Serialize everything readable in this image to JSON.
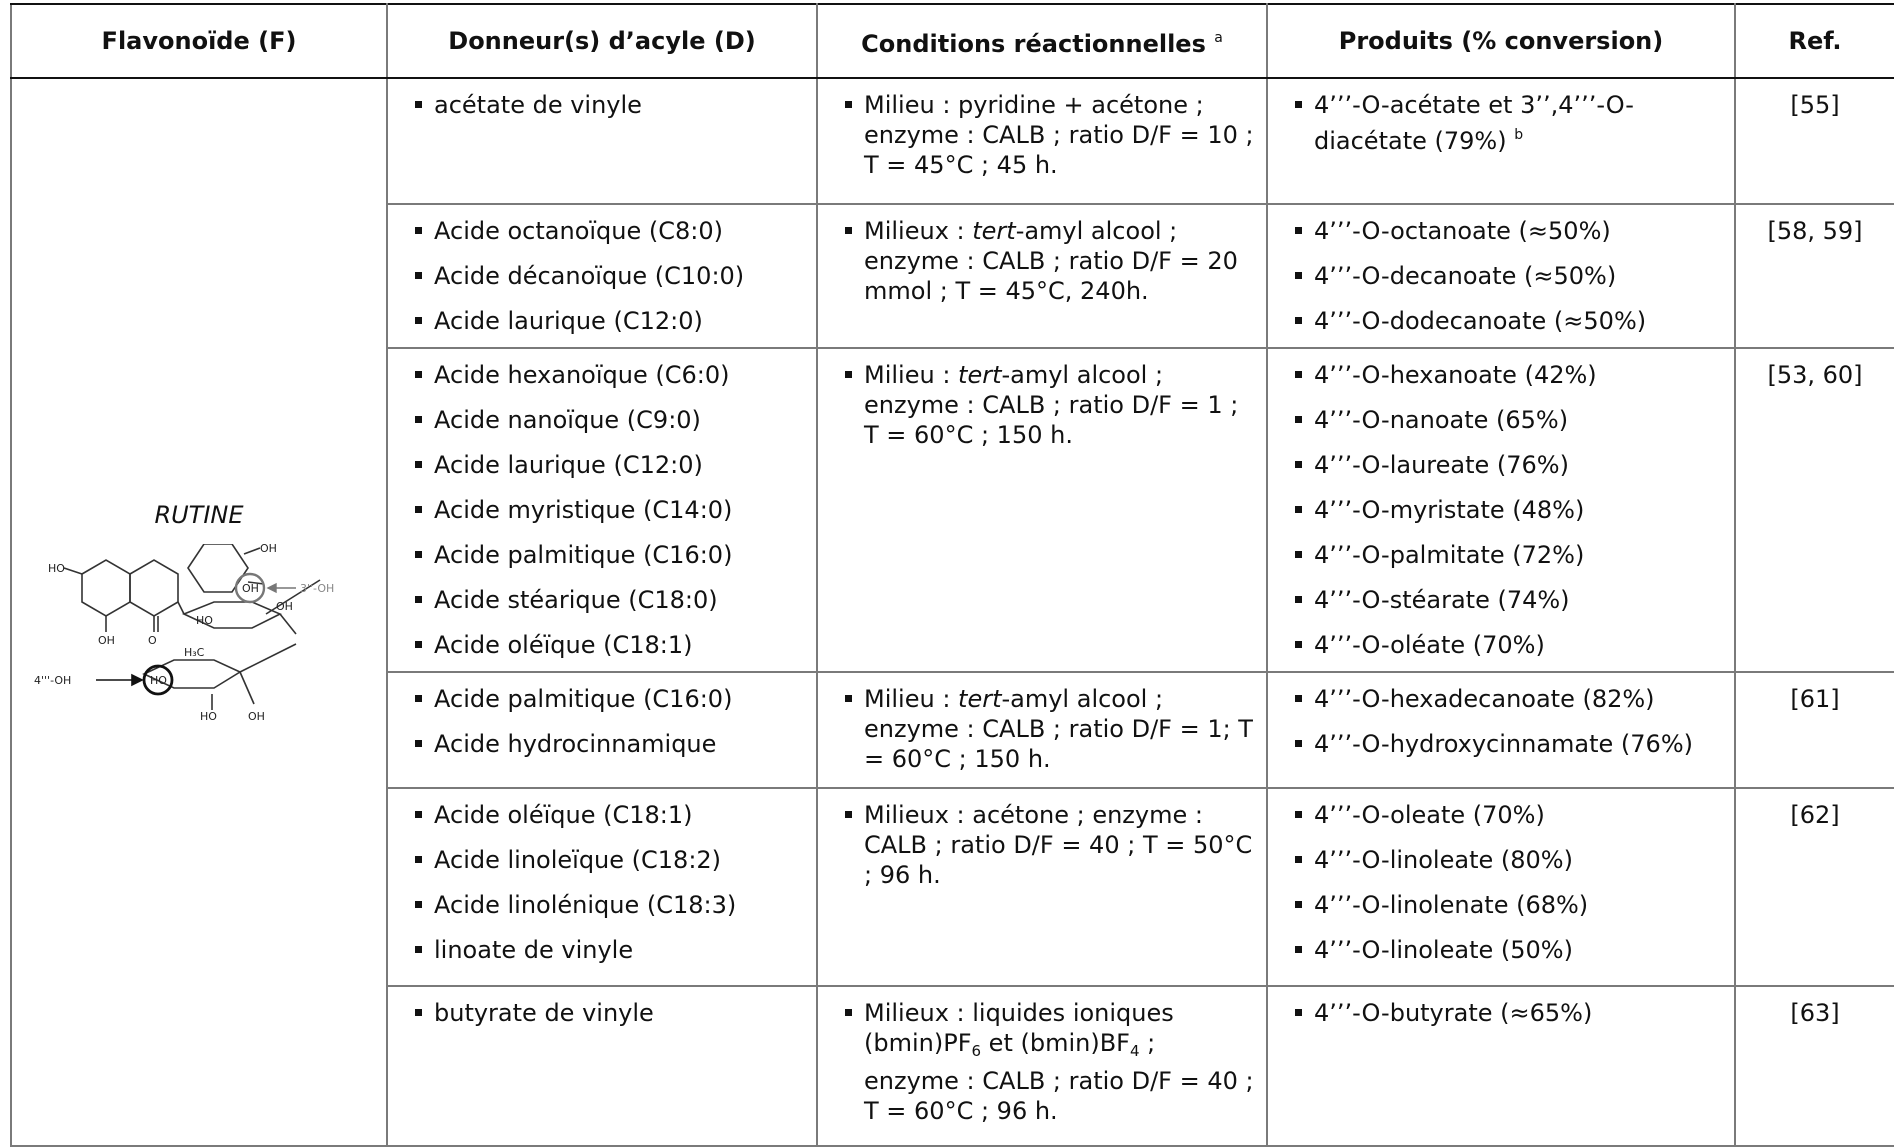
{
  "headers": {
    "flavonoide": "Flavonoïde (F)",
    "donneurs": "Donneur(s) d’acyle (D)",
    "conditions": "Conditions réactionnelles",
    "conditions_note": "a",
    "produits": "Produits (% conversion)",
    "ref": "Ref."
  },
  "flavonoid": {
    "name": "RUTINE",
    "structure_labels": {
      "oh": "OH",
      "ho": "HO",
      "o": "O",
      "h3c": "H₃C",
      "arrow_3": "3''-OH",
      "arrow_4": "4'''-OH"
    }
  },
  "rows": [
    {
      "donors": [
        "acétate de vinyle"
      ],
      "conditions": "Milieu : pyridine + acétone ; enzyme : CALB ; ratio D/F = 10 ; T = 45°C ; 45 h.",
      "products": [
        "4’’’-O-acétate et 3’’,4’’’-O-diacétate (79%)"
      ],
      "product_note": "b",
      "ref": "[55]"
    },
    {
      "donors": [
        "Acide octanoïque (C8:0)",
        "Acide décanoïque (C10:0)",
        "Acide laurique (C12:0)"
      ],
      "conditions_a": "Milieux : ",
      "conditions_it": "tert",
      "conditions_b": "-amyl alcool ; enzyme : CALB ; ratio D/F = 20 mmol ; T = 45°C, 240h.",
      "products": [
        "4’’’-O-octanoate (≈50%)",
        "4’’’-O-decanoate (≈50%)",
        "4’’’-O-dodecanoate (≈50%)"
      ],
      "ref": "[58, 59]"
    },
    {
      "donors": [
        "Acide hexanoïque (C6:0)",
        "Acide nanoïque (C9:0)",
        "Acide laurique (C12:0)",
        "Acide myristique (C14:0)",
        "Acide palmitique (C16:0)",
        "Acide stéarique (C18:0)",
        "Acide oléïque (C18:1)"
      ],
      "conditions_a": "Milieu : ",
      "conditions_it": "tert",
      "conditions_b": "-amyl alcool ; enzyme : CALB ; ratio D/F = 1 ; T = 60°C ; 150 h.",
      "products": [
        "4’’’-O-hexanoate (42%)",
        "4’’’-O-nanoate (65%)",
        "4’’’-O-laureate (76%)",
        "4’’’-O-myristate (48%)",
        "4’’’-O-palmitate (72%)",
        "4’’’-O-stéarate (74%)",
        "4’’’-O-oléate (70%)"
      ],
      "ref": "[53, 60]"
    },
    {
      "donors": [
        "Acide palmitique (C16:0)",
        "Acide hydrocinnamique"
      ],
      "conditions_a": "Milieu : ",
      "conditions_it": "tert",
      "conditions_b": "-amyl alcool ; enzyme : CALB ; ratio D/F = 1; T = 60°C ; 150 h.",
      "products": [
        "4’’’-O-hexadecanoate (82%)",
        "4’’’-O-hydroxycinnamate (76%)"
      ],
      "ref": "[61]"
    },
    {
      "donors": [
        "Acide oléïque (C18:1)",
        "Acide linoleïque (C18:2)",
        "Acide linolénique (C18:3)",
        "linoate de vinyle"
      ],
      "conditions": "Milieux : acétone ; enzyme : CALB ; ratio D/F = 40 ;  T = 50°C ; 96 h.",
      "products": [
        "4’’’-O-oleate (70%)",
        "4’’’-O-linoleate (80%)",
        "4’’’-O-linolenate (68%)",
        "4’’’-O-linoleate (50%)"
      ],
      "ref": "[62]"
    },
    {
      "donors": [
        "butyrate de vinyle"
      ],
      "conditions_a": "Milieux : liquides ioniques (bmin)PF",
      "conditions_sub1": "6",
      "conditions_mid": " et (bmin)BF",
      "conditions_sub2": "4",
      "conditions_b": " ; enzyme : CALB ; ratio D/F = 40 ; T = 60°C ; 96 h.",
      "products": [
        "4’’’-O-butyrate (≈65%)"
      ],
      "ref": "[63]"
    }
  ]
}
